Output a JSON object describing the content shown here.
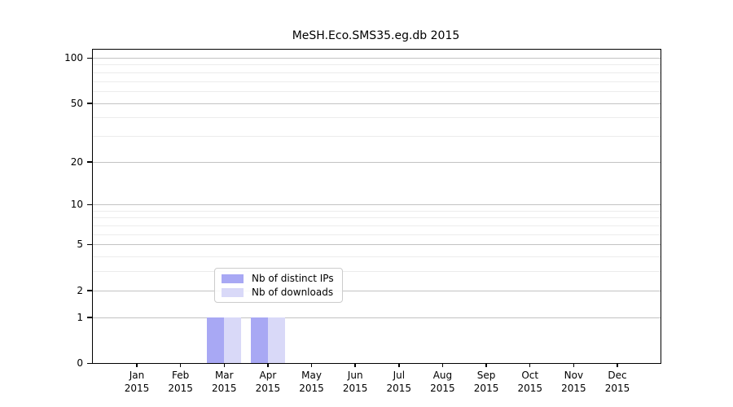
{
  "chart_data": {
    "type": "bar",
    "title": "MeSH.Eco.SMS35.eg.db 2015",
    "x_categories": [
      "Jan",
      "Feb",
      "Mar",
      "Apr",
      "May",
      "Jun",
      "Jul",
      "Aug",
      "Sep",
      "Oct",
      "Nov",
      "Dec"
    ],
    "x_year": "2015",
    "series": [
      {
        "name": "Nb of distinct IPs",
        "color": "#a8a8f4",
        "values": [
          0,
          0,
          1,
          1,
          0,
          0,
          0,
          0,
          0,
          0,
          0,
          0
        ]
      },
      {
        "name": "Nb of downloads",
        "color": "#d9d9f8",
        "values": [
          0,
          0,
          1,
          1,
          0,
          0,
          0,
          0,
          0,
          0,
          0,
          0
        ]
      }
    ],
    "y_scale": "log1p",
    "ylim": [
      0,
      100
    ],
    "y_ticks": [
      0,
      1,
      2,
      5,
      10,
      20,
      50,
      100
    ],
    "y_minor_gridlines": [
      3,
      4,
      6,
      7,
      8,
      9,
      30,
      40,
      60,
      70,
      80,
      90
    ],
    "grid": true,
    "legend_position": "inside-bottom-center",
    "axis_color": "#000000",
    "major_grid_color": "#c3c3c3",
    "minor_grid_color": "#ececec"
  }
}
